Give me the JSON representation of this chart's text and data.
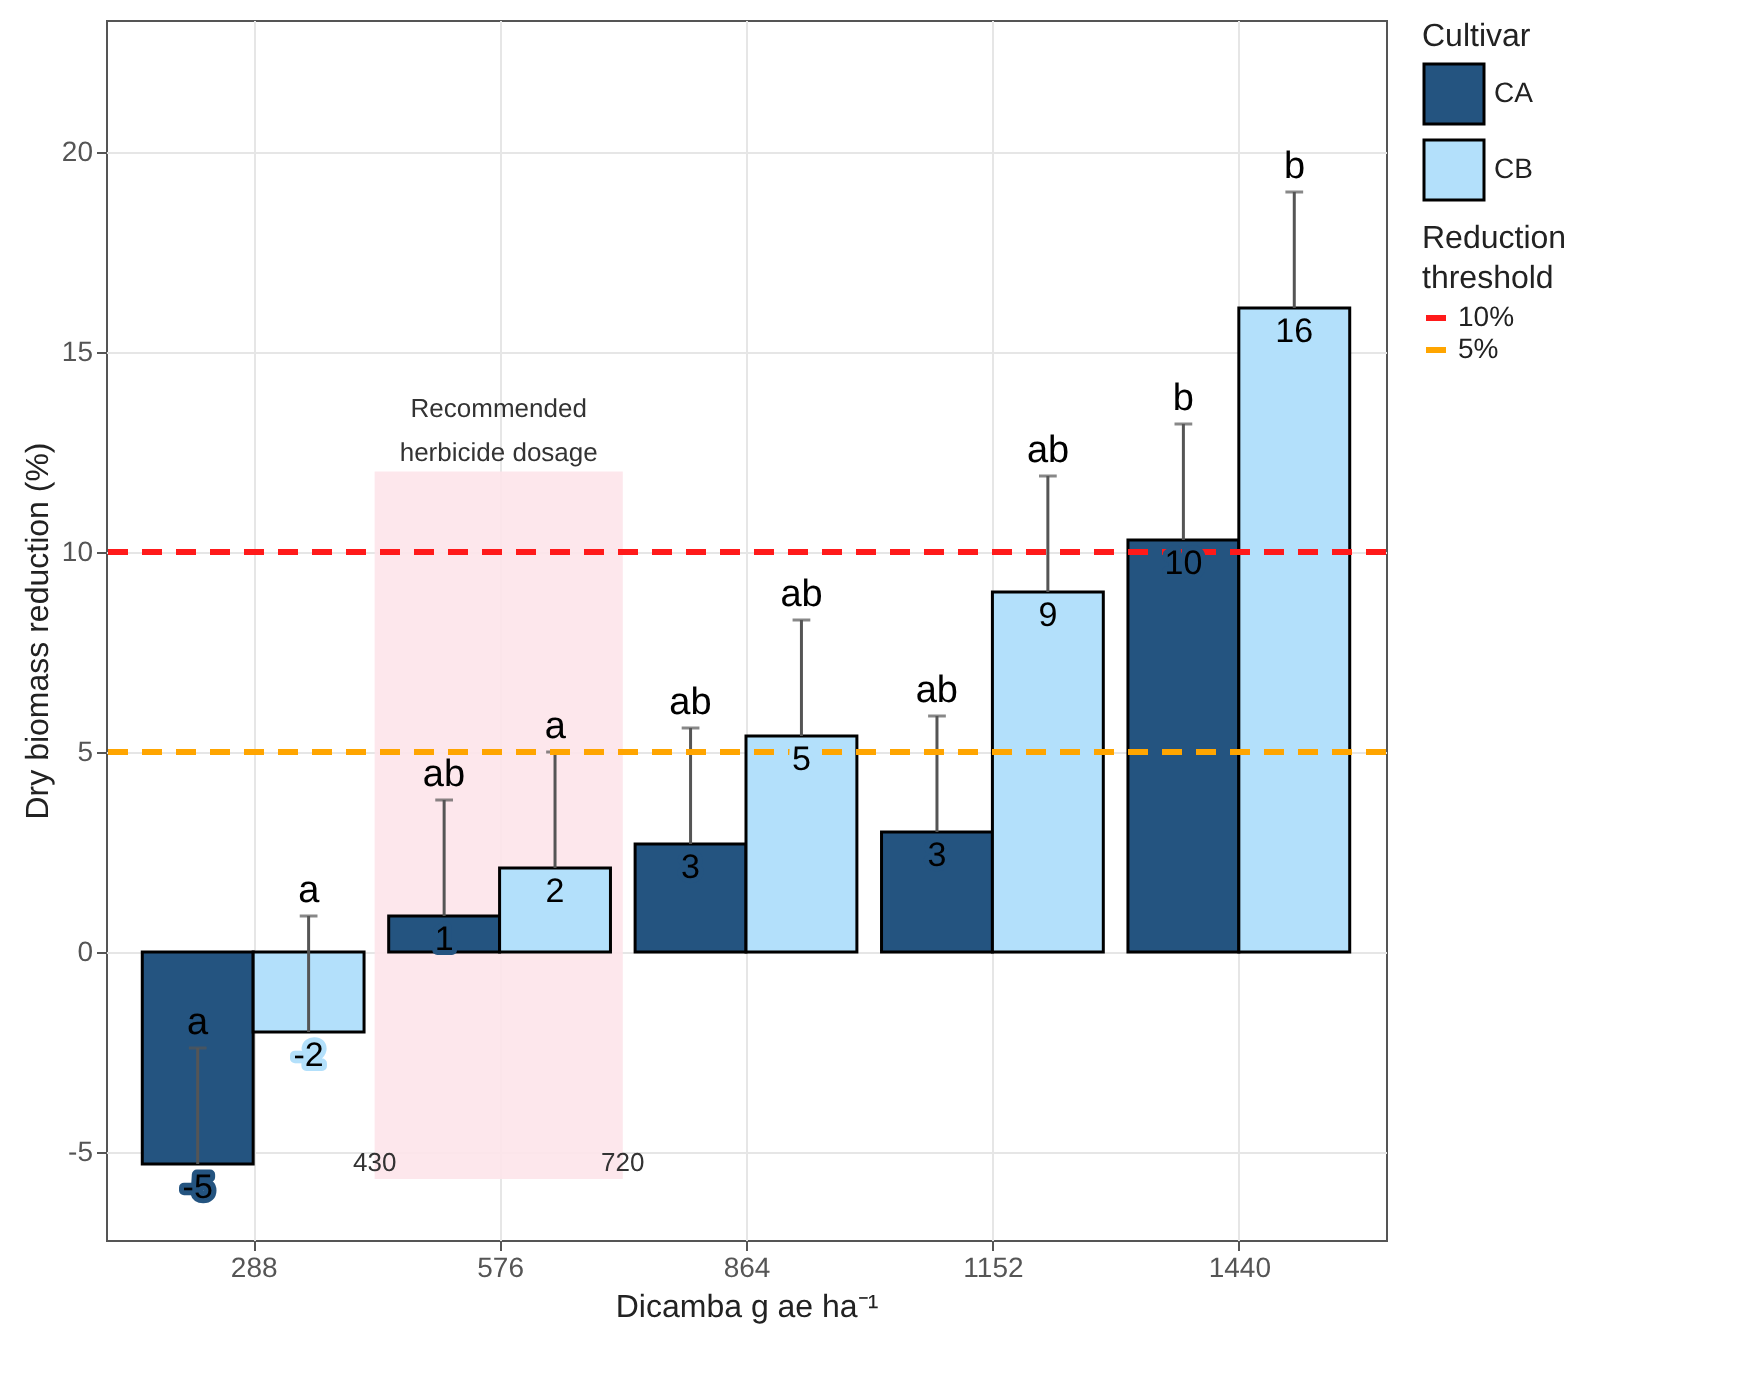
{
  "chart_data": {
    "type": "bar",
    "xlabel": "Dicamba g ae ha⁻¹",
    "ylabel": "Dry biomass reduction (%)",
    "legend_title": "Cultivar",
    "x": [
      288,
      576,
      864,
      1152,
      1440
    ],
    "series": [
      {
        "name": "CA",
        "color": "#245480",
        "values": [
          -5.3,
          0.9,
          2.7,
          3.0,
          10.3
        ],
        "value_labels": [
          "-5",
          "1",
          "3",
          "3",
          "10"
        ],
        "errors": [
          [
            -5.3,
            -2.4
          ],
          [
            0.9,
            3.8
          ],
          [
            2.7,
            5.6
          ],
          [
            3.0,
            5.9
          ],
          [
            10.3,
            13.2
          ]
        ]
      },
      {
        "name": "CB",
        "color": "#b3e0fb",
        "values": [
          -2.0,
          2.1,
          5.4,
          9.0,
          16.1
        ],
        "value_labels": [
          "-2",
          "2",
          "5",
          "9",
          "16"
        ],
        "errors": [
          [
            -2.0,
            0.9
          ],
          [
            2.1,
            5.0
          ],
          [
            5.4,
            8.3
          ],
          [
            9.0,
            11.9
          ],
          [
            16.1,
            19.0
          ]
        ]
      }
    ],
    "xlim": [
      116,
      1612
    ],
    "xticks": [
      288,
      576,
      864,
      1152,
      1440
    ],
    "ylim": [
      -7.2,
      23.3
    ],
    "yticks": [
      -5,
      0,
      5,
      10,
      15,
      20
    ],
    "grid": true,
    "legend": "right",
    "bands": [
      {
        "axis": "x",
        "from": 430,
        "to": 720,
        "label": "Recommended\nherbicide dosage",
        "color": "#fde4ea"
      }
    ],
    "ref_lines": [
      {
        "axis": "y",
        "value": 10,
        "label": "10%",
        "color": "#ff1a1a",
        "line_style": "dashed"
      },
      {
        "axis": "y",
        "value": 5,
        "label": "5%",
        "color": "#ffa500",
        "line_style": "dashed"
      }
    ],
    "annotations": [
      "Reduction threshold",
      "430",
      "720",
      {
        "text": "a",
        "x": 223,
        "y": -2.4
      },
      {
        "text": "a",
        "x": 353,
        "y": 0.9
      },
      {
        "text": "ab",
        "x": 511,
        "y": 3.8
      },
      {
        "text": "a",
        "x": 641,
        "y": 5.0
      },
      {
        "text": "ab",
        "x": 799,
        "y": 5.6
      },
      {
        "text": "ab",
        "x": 929,
        "y": 8.3
      },
      {
        "text": "ab",
        "x": 1087,
        "y": 5.9
      },
      {
        "text": "ab",
        "x": 1217,
        "y": 11.9
      },
      {
        "text": "b",
        "x": 1375,
        "y": 13.2
      },
      {
        "text": "b",
        "x": 1505,
        "y": 19.0
      }
    ]
  }
}
